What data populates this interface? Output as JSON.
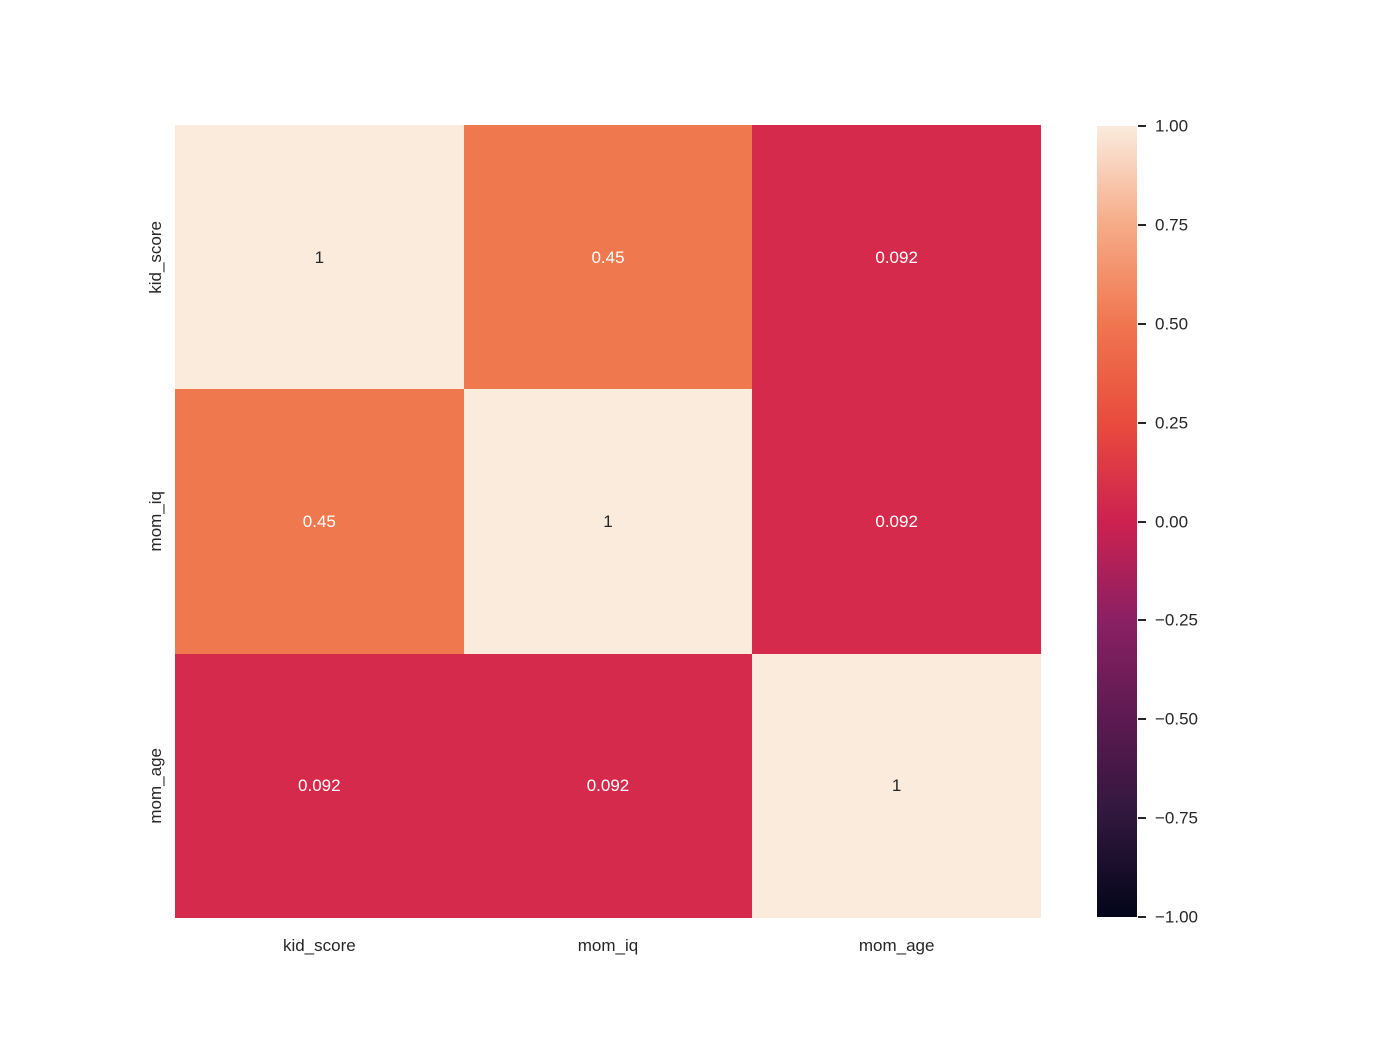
{
  "chart_data": {
    "type": "heatmap",
    "title": "",
    "colormap": "rocket",
    "variables": [
      "kid_score",
      "mom_iq",
      "mom_age"
    ],
    "x_tick_labels": [
      "kid_score",
      "mom_iq",
      "mom_age"
    ],
    "y_tick_labels": [
      "kid_score",
      "mom_iq",
      "mom_age"
    ],
    "matrix": [
      [
        1,
        0.45,
        0.092
      ],
      [
        0.45,
        1,
        0.092
      ],
      [
        0.092,
        0.092,
        1
      ]
    ],
    "cells": [
      {
        "row": "kid_score",
        "col": "kid_score",
        "label": "1",
        "bg": "#faebdd",
        "fg": "#262626"
      },
      {
        "row": "kid_score",
        "col": "mom_iq",
        "label": "0.45",
        "bg": "#f0784f",
        "fg": "#ffffff"
      },
      {
        "row": "kid_score",
        "col": "mom_age",
        "label": "0.092",
        "bg": "#d62a4d",
        "fg": "#ffffff"
      },
      {
        "row": "mom_iq",
        "col": "kid_score",
        "label": "0.45",
        "bg": "#f0784f",
        "fg": "#ffffff"
      },
      {
        "row": "mom_iq",
        "col": "mom_iq",
        "label": "1",
        "bg": "#faebdd",
        "fg": "#262626"
      },
      {
        "row": "mom_iq",
        "col": "mom_age",
        "label": "0.092",
        "bg": "#d62a4d",
        "fg": "#ffffff"
      },
      {
        "row": "mom_age",
        "col": "kid_score",
        "label": "0.092",
        "bg": "#d62a4d",
        "fg": "#ffffff"
      },
      {
        "row": "mom_age",
        "col": "mom_iq",
        "label": "0.092",
        "bg": "#d62a4d",
        "fg": "#ffffff"
      },
      {
        "row": "mom_age",
        "col": "mom_age",
        "label": "1",
        "bg": "#faebdd",
        "fg": "#262626"
      }
    ],
    "colorbar": {
      "vmin": -1,
      "vmax": 1,
      "tick_labels": [
        "1.00",
        "0.75",
        "0.50",
        "0.25",
        "0.00",
        "−0.25",
        "−0.50",
        "−0.75",
        "−1.00"
      ],
      "tick_values": [
        1.0,
        0.75,
        0.5,
        0.25,
        0.0,
        -0.25,
        -0.5,
        -0.75,
        -1.0
      ],
      "gradient": [
        {
          "value": -1.0,
          "color": "#03051a"
        },
        {
          "value": -0.75,
          "color": "#2f173c"
        },
        {
          "value": -0.5,
          "color": "#5c1a51"
        },
        {
          "value": -0.25,
          "color": "#8a2063"
        },
        {
          "value": 0.0,
          "color": "#cd2150"
        },
        {
          "value": 0.25,
          "color": "#e84c3d"
        },
        {
          "value": 0.5,
          "color": "#f0764f"
        },
        {
          "value": 0.75,
          "color": "#f6ab87"
        },
        {
          "value": 1.0,
          "color": "#faebdd"
        }
      ]
    },
    "layout": {
      "grid": false,
      "legend_position": "right-colorbar",
      "background": "#ffffff"
    }
  }
}
